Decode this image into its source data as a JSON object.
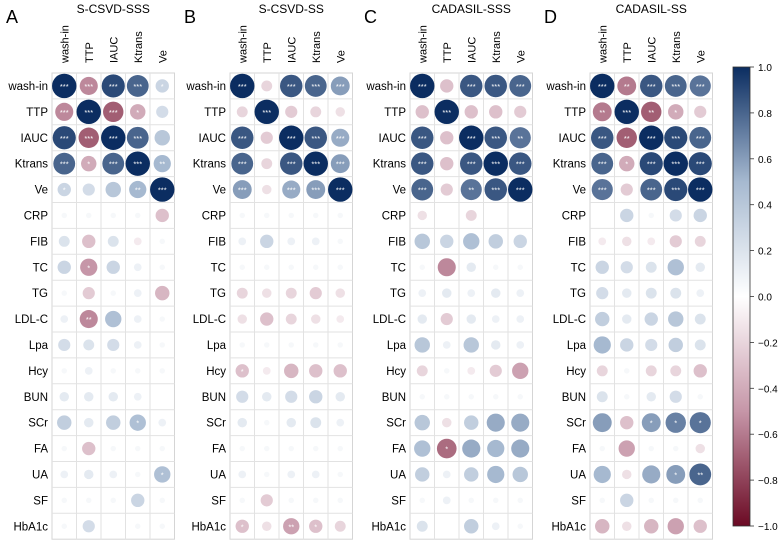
{
  "columns": [
    "wash-in",
    "TTP",
    "IAUC",
    "Ktrans",
    "Ve"
  ],
  "rows": [
    "wash-in",
    "TTP",
    "IAUC",
    "Ktrans",
    "Ve",
    "CRP",
    "FIB",
    "TC",
    "TG",
    "LDL-C",
    "Lpa",
    "Hcy",
    "BUN",
    "SCr",
    "FA",
    "UA",
    "SF",
    "HbA1c"
  ],
  "colorbar": {
    "ticks": [
      1.0,
      0.8,
      0.6,
      0.4,
      0.2,
      0.0,
      -0.2,
      -0.4,
      -0.6,
      -0.8,
      -1.0
    ],
    "tick_labels": [
      "1.0",
      "0.8",
      "0.6",
      "0.4",
      "0.2",
      "0.0",
      "−0.2",
      "−0.4",
      "−0.6",
      "−0.8",
      "−1.0"
    ],
    "colors": {
      "pos": "#0b2d61",
      "neg": "#6b0a24",
      "mid": "#ffffff"
    }
  },
  "chart_data": [
    {
      "type": "heatmap",
      "panel_letter": "A",
      "title": "S-CSVD-SSS",
      "columns": [
        "wash-in",
        "TTP",
        "IAUC",
        "Ktrans",
        "Ve"
      ],
      "rows": [
        "wash-in",
        "TTP",
        "IAUC",
        "Ktrans",
        "Ve",
        "CRP",
        "FIB",
        "TC",
        "TG",
        "LDL-C",
        "Lpa",
        "Hcy",
        "BUN",
        "SCr",
        "FA",
        "UA",
        "SF",
        "HbA1c"
      ],
      "values": [
        [
          1.0,
          -0.55,
          0.9,
          0.8,
          0.3
        ],
        [
          -0.55,
          1.0,
          -0.7,
          -0.4,
          0.25
        ],
        [
          0.9,
          -0.7,
          1.0,
          0.8,
          0.4
        ],
        [
          0.8,
          -0.4,
          0.8,
          1.0,
          0.5
        ],
        [
          0.3,
          0.25,
          0.4,
          0.5,
          1.0
        ],
        [
          0.05,
          0.05,
          0.05,
          0.05,
          -0.3
        ],
        [
          0.2,
          -0.3,
          0.2,
          -0.1,
          0.05
        ],
        [
          0.3,
          -0.5,
          0.3,
          0.1,
          0.05
        ],
        [
          0.05,
          -0.25,
          0.05,
          0.1,
          -0.35
        ],
        [
          0.1,
          -0.55,
          0.45,
          0.1,
          0.05
        ],
        [
          0.25,
          0.2,
          0.25,
          0.1,
          0.05
        ],
        [
          0.05,
          0.1,
          0.05,
          0.05,
          0.05
        ],
        [
          0.15,
          0.15,
          0.15,
          0.1,
          0.0
        ],
        [
          0.35,
          0.15,
          0.35,
          0.45,
          0.1
        ],
        [
          0.05,
          -0.3,
          0.05,
          0.05,
          0.05
        ],
        [
          0.1,
          0.15,
          0.1,
          0.05,
          0.45
        ],
        [
          0.05,
          0.05,
          0.05,
          0.3,
          0.05
        ],
        [
          0.05,
          0.25,
          0.0,
          0.05,
          0.05
        ]
      ],
      "labels": [
        [
          "***",
          "***",
          "***",
          "***",
          "*"
        ],
        [
          "***",
          "***",
          "***",
          "*",
          ""
        ],
        [
          "***",
          "***",
          "***",
          "***",
          ""
        ],
        [
          "***",
          "*",
          "***",
          "***",
          "**"
        ],
        [
          "*",
          "",
          "",
          "**",
          "***"
        ],
        [
          "",
          "",
          "",
          "",
          ""
        ],
        [
          "",
          "",
          "",
          "",
          ""
        ],
        [
          "",
          "*",
          "",
          "",
          ""
        ],
        [
          "",
          "",
          "",
          "",
          ""
        ],
        [
          "",
          "**",
          "",
          "",
          ""
        ],
        [
          "",
          "",
          "",
          "",
          ""
        ],
        [
          "",
          "",
          "",
          "",
          ""
        ],
        [
          "",
          "",
          "",
          "",
          ""
        ],
        [
          "",
          "",
          "",
          "*",
          ""
        ],
        [
          "",
          "",
          "",
          "",
          ""
        ],
        [
          "",
          "",
          "",
          "",
          "*"
        ],
        [
          "",
          "",
          "",
          "",
          ""
        ],
        [
          "",
          "",
          "",
          "",
          ""
        ]
      ]
    },
    {
      "type": "heatmap",
      "panel_letter": "B",
      "title": "S-CSVD-SS",
      "columns": [
        "wash-in",
        "TTP",
        "IAUC",
        "Ktrans",
        "Ve"
      ],
      "rows": [
        "wash-in",
        "TTP",
        "IAUC",
        "Ktrans",
        "Ve",
        "CRP",
        "FIB",
        "TC",
        "TG",
        "LDL-C",
        "Lpa",
        "Hcy",
        "BUN",
        "SCr",
        "FA",
        "UA",
        "SF",
        "HbA1c"
      ],
      "values": [
        [
          1.0,
          -0.2,
          0.85,
          0.8,
          0.6
        ],
        [
          -0.2,
          1.0,
          -0.25,
          -0.2,
          -0.15
        ],
        [
          0.85,
          -0.25,
          1.0,
          0.85,
          0.55
        ],
        [
          0.8,
          -0.2,
          0.85,
          1.0,
          0.6
        ],
        [
          0.6,
          -0.15,
          0.55,
          0.6,
          1.0
        ],
        [
          0.05,
          0.05,
          0.05,
          0.05,
          0.05
        ],
        [
          0.1,
          0.3,
          0.1,
          0.1,
          0.05
        ],
        [
          0.05,
          0.05,
          0.05,
          0.05,
          0.05
        ],
        [
          -0.2,
          -0.15,
          -0.2,
          -0.25,
          -0.15
        ],
        [
          -0.15,
          -0.3,
          -0.2,
          -0.15,
          -0.1
        ],
        [
          0.05,
          0.05,
          0.05,
          0.05,
          0.05
        ],
        [
          -0.3,
          -0.1,
          -0.35,
          -0.3,
          -0.3
        ],
        [
          0.25,
          0.15,
          0.25,
          0.3,
          0.15
        ],
        [
          0.15,
          0.05,
          0.15,
          0.2,
          0.1
        ],
        [
          0.05,
          0.05,
          0.05,
          0.05,
          0.05
        ],
        [
          0.1,
          0.05,
          0.1,
          0.1,
          0.05
        ],
        [
          0.05,
          -0.25,
          0.05,
          0.05,
          0.05
        ],
        [
          -0.3,
          -0.15,
          -0.45,
          -0.3,
          -0.2
        ]
      ],
      "labels": [
        [
          "***",
          "",
          "***",
          "***",
          "***"
        ],
        [
          "",
          "***",
          "",
          "",
          ""
        ],
        [
          "***",
          "",
          "***",
          "***",
          "***"
        ],
        [
          "***",
          "",
          "***",
          "***",
          "***"
        ],
        [
          "***",
          "",
          "***",
          "***",
          "***"
        ],
        [
          "",
          "",
          "",
          "",
          ""
        ],
        [
          "",
          "",
          "",
          "",
          ""
        ],
        [
          "",
          "",
          "",
          "",
          ""
        ],
        [
          "",
          "",
          "",
          "",
          ""
        ],
        [
          "",
          "",
          "",
          "",
          ""
        ],
        [
          "",
          "",
          "",
          "",
          ""
        ],
        [
          "*",
          "",
          "",
          "",
          ""
        ],
        [
          "",
          "",
          "",
          "",
          ""
        ],
        [
          "",
          "",
          "",
          "",
          ""
        ],
        [
          "",
          "",
          "",
          "",
          ""
        ],
        [
          "",
          "",
          "",
          "",
          ""
        ],
        [
          "",
          "",
          "",
          "",
          ""
        ],
        [
          "*",
          "",
          "**",
          "*",
          ""
        ]
      ]
    },
    {
      "type": "heatmap",
      "panel_letter": "C",
      "title": "CADASIL-SSS",
      "columns": [
        "wash-in",
        "TTP",
        "IAUC",
        "Ktrans",
        "Ve"
      ],
      "rows": [
        "wash-in",
        "TTP",
        "IAUC",
        "Ktrans",
        "Ve",
        "CRP",
        "FIB",
        "TC",
        "TG",
        "LDL-C",
        "Lpa",
        "Hcy",
        "BUN",
        "SCr",
        "FA",
        "UA",
        "SF",
        "HbA1c"
      ],
      "values": [
        [
          1.0,
          -0.3,
          0.85,
          0.85,
          0.8
        ],
        [
          -0.3,
          1.0,
          -0.3,
          -0.3,
          -0.25
        ],
        [
          0.85,
          -0.3,
          1.0,
          0.85,
          0.75
        ],
        [
          0.85,
          -0.3,
          0.85,
          1.0,
          0.85
        ],
        [
          0.8,
          -0.25,
          0.75,
          0.85,
          1.0
        ],
        [
          -0.15,
          0.0,
          -0.2,
          0.0,
          0.0
        ],
        [
          0.4,
          0.3,
          0.45,
          0.35,
          0.3
        ],
        [
          0.05,
          -0.55,
          0.15,
          0.05,
          0.05
        ],
        [
          0.1,
          0.15,
          0.1,
          0.15,
          0.1
        ],
        [
          0.15,
          -0.25,
          0.15,
          0.1,
          0.1
        ],
        [
          0.4,
          0.1,
          0.4,
          0.15,
          0.1
        ],
        [
          -0.2,
          0.05,
          -0.1,
          -0.25,
          -0.45
        ],
        [
          0.05,
          0.05,
          0.05,
          0.05,
          0.05
        ],
        [
          0.4,
          -0.15,
          0.35,
          0.55,
          0.55
        ],
        [
          0.45,
          -0.65,
          0.55,
          0.5,
          0.55
        ],
        [
          0.35,
          0.1,
          0.35,
          0.5,
          0.4
        ],
        [
          0.05,
          0.1,
          0.05,
          0.05,
          0.05
        ],
        [
          0.2,
          0.0,
          0.35,
          0.1,
          0.05
        ]
      ],
      "labels": [
        [
          "***",
          "",
          "***",
          "***",
          "***"
        ],
        [
          "",
          "***",
          "",
          "",
          ""
        ],
        [
          "***",
          "",
          "***",
          "***",
          "**"
        ],
        [
          "***",
          "",
          "***",
          "***",
          "***"
        ],
        [
          "***",
          "",
          "**",
          "***",
          "***"
        ],
        [
          "",
          "",
          "",
          "",
          ""
        ],
        [
          "",
          "",
          "",
          "",
          ""
        ],
        [
          "",
          "",
          "",
          "",
          ""
        ],
        [
          "",
          "",
          "",
          "",
          ""
        ],
        [
          "",
          "",
          "",
          "",
          ""
        ],
        [
          "",
          "",
          "",
          "",
          ""
        ],
        [
          "",
          "",
          "",
          "",
          ""
        ],
        [
          "",
          "",
          "",
          "",
          ""
        ],
        [
          "",
          "",
          "",
          "",
          ""
        ],
        [
          "",
          "*",
          "",
          "",
          ""
        ],
        [
          "",
          "",
          "",
          "",
          ""
        ],
        [
          "",
          "",
          "",
          "",
          ""
        ],
        [
          "",
          "",
          "",
          "",
          ""
        ]
      ]
    },
    {
      "type": "heatmap",
      "panel_letter": "D",
      "title": "CADASIL-SS",
      "columns": [
        "wash-in",
        "TTP",
        "IAUC",
        "Ktrans",
        "Ve"
      ],
      "rows": [
        "wash-in",
        "TTP",
        "IAUC",
        "Ktrans",
        "Ve",
        "CRP",
        "FIB",
        "TC",
        "TG",
        "LDL-C",
        "Lpa",
        "Hcy",
        "BUN",
        "SCr",
        "FA",
        "UA",
        "SF",
        "HbA1c"
      ],
      "values": [
        [
          1.0,
          -0.6,
          0.85,
          0.8,
          0.75
        ],
        [
          -0.6,
          1.0,
          -0.7,
          -0.4,
          -0.25
        ],
        [
          0.85,
          -0.7,
          1.0,
          0.9,
          0.8
        ],
        [
          0.8,
          -0.4,
          0.9,
          1.0,
          0.9
        ],
        [
          0.75,
          -0.25,
          0.8,
          0.9,
          1.0
        ],
        [
          0.0,
          0.3,
          0.05,
          0.25,
          0.3
        ],
        [
          -0.1,
          -0.15,
          -0.1,
          -0.25,
          -0.2
        ],
        [
          0.3,
          0.25,
          0.2,
          0.45,
          0.15
        ],
        [
          0.25,
          0.15,
          0.2,
          0.2,
          0.1
        ],
        [
          0.35,
          0.15,
          0.3,
          0.4,
          0.2
        ],
        [
          0.5,
          0.3,
          0.25,
          0.35,
          0.2
        ],
        [
          -0.2,
          0.05,
          -0.2,
          -0.2,
          -0.3
        ],
        [
          0.2,
          0.05,
          0.15,
          0.25,
          0.05
        ],
        [
          0.6,
          -0.3,
          0.6,
          0.7,
          0.75
        ],
        [
          0.05,
          -0.45,
          0.05,
          0.05,
          -0.15
        ],
        [
          0.5,
          -0.15,
          0.55,
          0.6,
          0.8
        ],
        [
          0.05,
          0.3,
          0.05,
          0.05,
          0.05
        ],
        [
          -0.35,
          -0.15,
          -0.35,
          -0.45,
          -0.3
        ]
      ],
      "labels": [
        [
          "***",
          "**",
          "***",
          "***",
          "***"
        ],
        [
          "**",
          "***",
          "**",
          "*",
          ""
        ],
        [
          "***",
          "**",
          "***",
          "***",
          "***"
        ],
        [
          "***",
          "*",
          "***",
          "***",
          "***"
        ],
        [
          "***",
          "",
          "***",
          "***",
          "***"
        ],
        [
          "",
          "",
          "",
          "",
          ""
        ],
        [
          "",
          "",
          "",
          "",
          ""
        ],
        [
          "",
          "",
          "",
          "",
          ""
        ],
        [
          "",
          "",
          "",
          "",
          ""
        ],
        [
          "",
          "",
          "",
          "",
          ""
        ],
        [
          "",
          "",
          "",
          "",
          ""
        ],
        [
          "",
          "",
          "",
          "",
          ""
        ],
        [
          "",
          "",
          "",
          "",
          ""
        ],
        [
          "",
          "",
          "*",
          "*",
          "*"
        ],
        [
          "",
          "",
          "",
          "",
          ""
        ],
        [
          "",
          "",
          "",
          "*",
          "**"
        ],
        [
          "",
          "",
          "",
          "",
          ""
        ],
        [
          "",
          "",
          "",
          "",
          ""
        ]
      ]
    }
  ]
}
